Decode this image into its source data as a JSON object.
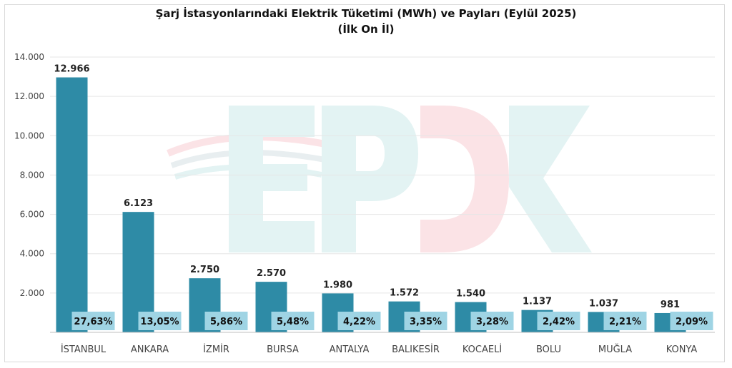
{
  "chart_data": {
    "type": "bar",
    "title": "Şarj İstasyonlarındaki Elektrik Tüketimi (MWh) ve Payları (Eylül 2025)",
    "subtitle": "(İlk On İl)",
    "categories": [
      "İSTANBUL",
      "ANKARA",
      "İZMİR",
      "BURSA",
      "ANTALYA",
      "BALIKESİR",
      "KOCAELİ",
      "BOLU",
      "MUĞLA",
      "KONYA"
    ],
    "values": [
      12966,
      6123,
      2750,
      2570,
      1980,
      1572,
      1540,
      1137,
      1037,
      981
    ],
    "value_labels": [
      "12.966",
      "6.123",
      "2.750",
      "2.570",
      "1.980",
      "1.572",
      "1.540",
      "1.137",
      "1.037",
      "981"
    ],
    "shares": [
      "27,63%",
      "13,05%",
      "5,86%",
      "5,48%",
      "4,22%",
      "3,35%",
      "3,28%",
      "2,42%",
      "2,21%",
      "2,09%"
    ],
    "yticks": [
      0,
      2000,
      4000,
      6000,
      8000,
      10000,
      12000,
      14000
    ],
    "ytick_labels": [
      "",
      "2.000",
      "4.000",
      "6.000",
      "8.000",
      "10.000",
      "12.000",
      "14.000"
    ],
    "ylim": [
      0,
      14000
    ],
    "grid": true,
    "legend": "none",
    "colors": {
      "bar": "#2e8ba6",
      "share_box": "#9fd4e4",
      "grid": "#e6e6e6",
      "axis": "#bfbfbf",
      "watermark_teal": "#e3f3f3",
      "watermark_pink": "#fbe3e6"
    },
    "watermark": "EPDK"
  }
}
